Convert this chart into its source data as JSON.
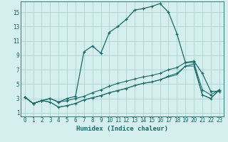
{
  "xlabel": "Humidex (Indice chaleur)",
  "bg_color": "#d4efed",
  "grid_color": "#afd4d0",
  "line_color": "#1a6b6b",
  "xlim": [
    -0.5,
    23.5
  ],
  "ylim": [
    0.5,
    16.5
  ],
  "xticks": [
    0,
    1,
    2,
    3,
    4,
    5,
    6,
    7,
    8,
    9,
    10,
    11,
    12,
    13,
    14,
    15,
    16,
    17,
    18,
    19,
    20,
    21,
    22,
    23
  ],
  "yticks": [
    1,
    3,
    5,
    7,
    9,
    11,
    13,
    15
  ],
  "s1_x": [
    0,
    1,
    2,
    3,
    4,
    5,
    6,
    7,
    8,
    9,
    10,
    11,
    12,
    13,
    14,
    15,
    16,
    17,
    18,
    19,
    20,
    21,
    22,
    23
  ],
  "s1_y": [
    3.2,
    2.3,
    2.7,
    3.0,
    2.5,
    3.0,
    3.3,
    9.5,
    10.3,
    9.3,
    12.2,
    13.0,
    14.0,
    15.3,
    15.5,
    15.8,
    16.2,
    15.0,
    12.0,
    8.0,
    8.2,
    6.5,
    4.0,
    4.0
  ],
  "s2_x": [
    0,
    1,
    2,
    3,
    4,
    5,
    6,
    7,
    8,
    9,
    10,
    11,
    12,
    13,
    14,
    15,
    16,
    17,
    18,
    19,
    20,
    21,
    22,
    23
  ],
  "s2_y": [
    3.2,
    2.3,
    2.7,
    3.0,
    2.5,
    2.7,
    3.0,
    3.3,
    3.8,
    4.2,
    4.7,
    5.1,
    5.4,
    5.7,
    6.0,
    6.2,
    6.5,
    7.0,
    7.3,
    8.0,
    8.0,
    4.2,
    3.5,
    4.2
  ],
  "s3_x": [
    0,
    1,
    2,
    3,
    4,
    5,
    6,
    7,
    8,
    9,
    10,
    11,
    12,
    13,
    14,
    15,
    16,
    17,
    18,
    19,
    20,
    21,
    22,
    23
  ],
  "s3_y": [
    3.2,
    2.3,
    2.7,
    2.5,
    1.8,
    2.0,
    2.3,
    2.8,
    3.1,
    3.4,
    3.8,
    4.1,
    4.4,
    4.8,
    5.1,
    5.3,
    5.6,
    6.1,
    6.5,
    7.5,
    7.8,
    3.5,
    3.0,
    4.2
  ],
  "s4_x": [
    0,
    1,
    2,
    3,
    4,
    5,
    6,
    7,
    8,
    9,
    10,
    11,
    12,
    13,
    14,
    15,
    16,
    17,
    18,
    19,
    20,
    21,
    22,
    23
  ],
  "s4_y": [
    3.2,
    2.3,
    2.7,
    2.5,
    1.8,
    2.0,
    2.3,
    2.8,
    3.1,
    3.4,
    3.8,
    4.1,
    4.4,
    4.8,
    5.1,
    5.3,
    5.6,
    6.0,
    6.3,
    7.5,
    7.5,
    3.5,
    3.0,
    4.2
  ]
}
